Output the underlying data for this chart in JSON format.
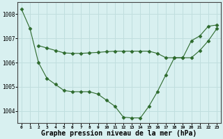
{
  "line1_x": [
    0,
    1,
    2,
    3,
    4,
    5,
    6,
    7,
    8,
    9,
    10,
    11,
    12,
    13,
    14,
    15,
    16,
    17,
    18,
    19,
    20,
    21,
    22,
    23
  ],
  "line1_y": [
    1008.2,
    1007.4,
    1006.0,
    1005.35,
    1005.1,
    1004.85,
    1004.8,
    1004.8,
    1004.8,
    1004.7,
    1004.45,
    1004.2,
    1003.75,
    1003.72,
    1003.72,
    1004.2,
    1004.8,
    1005.5,
    1006.2,
    1006.2,
    1006.9,
    1007.1,
    1007.5,
    1007.55
  ],
  "line2_x": [
    2,
    3,
    4,
    5,
    6,
    7,
    8,
    9,
    10,
    11,
    12,
    13,
    14,
    15,
    16,
    17,
    18,
    19,
    20,
    21,
    22,
    23
  ],
  "line2_y": [
    1006.7,
    1006.6,
    1006.5,
    1006.4,
    1006.38,
    1006.38,
    1006.4,
    1006.42,
    1006.45,
    1006.47,
    1006.47,
    1006.47,
    1006.47,
    1006.47,
    1006.38,
    1006.2,
    1006.2,
    1006.2,
    1006.2,
    1006.5,
    1006.9,
    1007.4
  ],
  "line_color": "#2d6a2d",
  "bg_color": "#d8f0f0",
  "grid_color": "#c0dede",
  "xlabel": "Graphe pression niveau de la mer (hPa)",
  "xlabel_fontsize": 7.0,
  "ylim": [
    1003.5,
    1008.5
  ],
  "yticks": [
    1004,
    1005,
    1006,
    1007,
    1008
  ],
  "xticks": [
    0,
    1,
    2,
    3,
    4,
    5,
    6,
    7,
    8,
    9,
    10,
    11,
    12,
    13,
    14,
    15,
    16,
    17,
    18,
    19,
    20,
    21,
    22,
    23
  ],
  "marker": "D",
  "markersize": 2.5,
  "linewidth": 0.8
}
